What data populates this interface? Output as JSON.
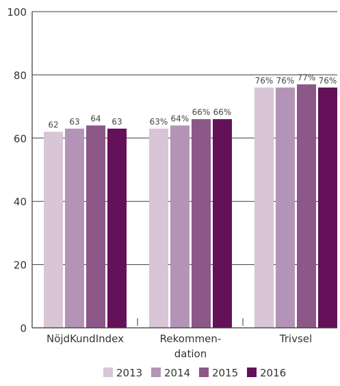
{
  "chart_data": {
    "type": "bar",
    "categories": [
      "NöjdKundIndex",
      "Rekommen-\ndation",
      "Trivsel"
    ],
    "series": [
      {
        "name": "2013",
        "values": [
          62,
          63,
          76
        ],
        "labels": [
          "62",
          "63%",
          "76%"
        ],
        "color": "#d8c5d6"
      },
      {
        "name": "2014",
        "values": [
          63,
          64,
          76
        ],
        "labels": [
          "63",
          "64%",
          "76%"
        ],
        "color": "#b494b6"
      },
      {
        "name": "2015",
        "values": [
          64,
          66,
          77
        ],
        "labels": [
          "64",
          "66%",
          "77%"
        ],
        "color": "#8b5887"
      },
      {
        "name": "2016",
        "values": [
          63,
          66,
          76
        ],
        "labels": [
          "63",
          "66%",
          "76%"
        ],
        "color": "#65115a"
      }
    ],
    "ylim": [
      0,
      100
    ],
    "yticks": [
      0,
      20,
      40,
      60,
      80,
      100
    ],
    "grid": true,
    "legend_position": "bottom-center",
    "title": "",
    "xlabel": "",
    "ylabel": ""
  }
}
